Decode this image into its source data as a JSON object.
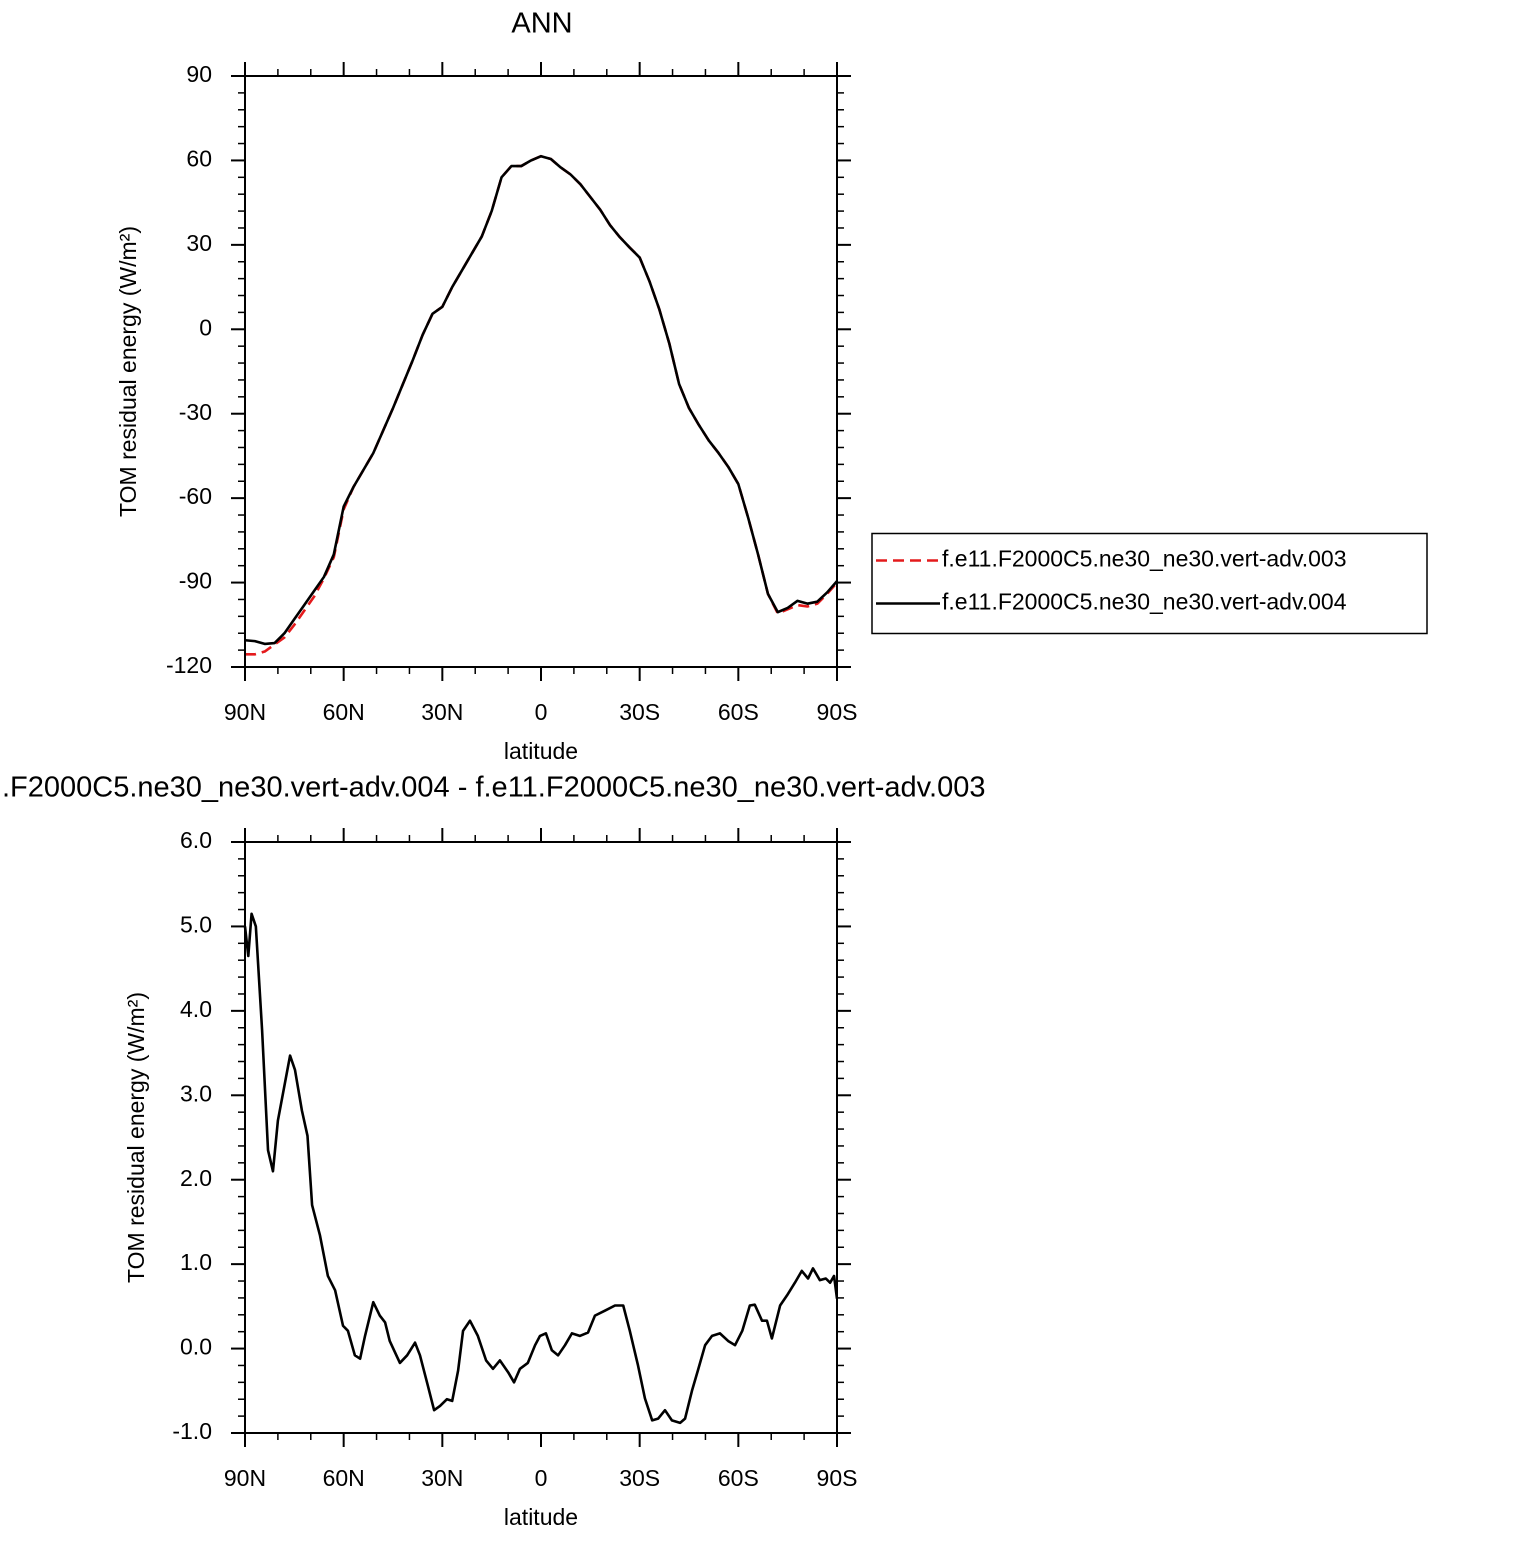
{
  "chart_data": [
    {
      "type": "line",
      "title": "ANN",
      "ylabel": "TOM residual energy (W/m²)",
      "xlabel": "latitude",
      "xlim": [
        90,
        -90
      ],
      "xticks": [
        {
          "value": 90,
          "label": "90N"
        },
        {
          "value": 60,
          "label": "60N"
        },
        {
          "value": 30,
          "label": "30N"
        },
        0,
        {
          "value": -30,
          "label": "30S"
        },
        {
          "value": -60,
          "label": "60S"
        },
        {
          "value": -90,
          "label": "90S"
        }
      ],
      "xminorticks": [
        80,
        70,
        50,
        40,
        20,
        10,
        -10,
        -20,
        -40,
        -50,
        -70,
        -80
      ],
      "ylim": [
        -120,
        90
      ],
      "yticks": [
        -120,
        -90,
        -60,
        -30,
        0,
        30,
        60,
        90
      ],
      "yminorticks": [
        -114,
        -108,
        -102,
        -96,
        -84,
        -78,
        -72,
        -66,
        -54,
        -48,
        -42,
        -36,
        -24,
        -18,
        -12,
        -6,
        6,
        12,
        18,
        24,
        36,
        42,
        48,
        54,
        66,
        72,
        78,
        84
      ],
      "legend": "right",
      "x": [
        90,
        87,
        84,
        81,
        78,
        75,
        72,
        69,
        66,
        63,
        60,
        57,
        54,
        51,
        48,
        45,
        42,
        39,
        36,
        33,
        30,
        27,
        24,
        21,
        18,
        15,
        12,
        9,
        6,
        3,
        0,
        -3,
        -6,
        -9,
        -12,
        -15,
        -18,
        -21,
        -24,
        -27,
        -30,
        -33,
        -36,
        -39,
        -42,
        -45,
        -48,
        -51,
        -54,
        -57,
        -60,
        -63,
        -66,
        -69,
        -72,
        -75,
        -78,
        -81,
        -84,
        -87,
        -90
      ],
      "series": [
        {
          "name": "f.e11.F2000C5.ne30_ne30.vert-adv.003",
          "color": "#e41a1c",
          "linestyle": "dashed",
          "values": [
            -115.5,
            -115.5,
            -114.5,
            -112,
            -109.5,
            -105,
            -100,
            -95,
            -88.5,
            -81,
            -64,
            -56,
            -50,
            -44,
            -36,
            -28,
            -19.5,
            -11,
            -2,
            5.5,
            8,
            15,
            21,
            27,
            33,
            42,
            54,
            58,
            58,
            60,
            61.5,
            60.5,
            57.5,
            55,
            51.5,
            47,
            42.5,
            37,
            32.7,
            29,
            25.5,
            17,
            7,
            -5,
            -19.5,
            -28,
            -34,
            -39.5,
            -44,
            -49,
            -55,
            -67,
            -80,
            -94,
            -101,
            -99.5,
            -98,
            -98.5,
            -97.5,
            -94,
            -90
          ]
        },
        {
          "name": "f.e11.F2000C5.ne30_ne30.vert-adv.004",
          "color": "#000000",
          "linestyle": "solid",
          "values": [
            -110.5,
            -110.8,
            -111.8,
            -111.5,
            -108,
            -103,
            -98,
            -93,
            -88,
            -80,
            -63,
            -56,
            -50,
            -44,
            -36,
            -28,
            -19.5,
            -11,
            -2,
            5.5,
            8,
            15,
            21,
            27,
            33,
            42,
            54,
            58,
            58,
            60,
            61.5,
            60.5,
            57.5,
            55,
            51.5,
            47,
            42.5,
            37,
            32.7,
            29,
            25.5,
            17,
            7,
            -5,
            -19.5,
            -28,
            -34,
            -39.5,
            -44,
            -49,
            -55,
            -67,
            -80,
            -94,
            -100.5,
            -99,
            -96.5,
            -97.5,
            -96.8,
            -93.5,
            -89.5
          ]
        }
      ]
    },
    {
      "type": "line",
      "title": ".F2000C5.ne30_ne30.vert-adv.004 - f.e11.F2000C5.ne30_ne30.vert-adv.003",
      "ylabel": "TOM residual energy (W/m²)",
      "xlabel": "latitude",
      "xlim": [
        90,
        -90
      ],
      "xticks": [
        {
          "value": 90,
          "label": "90N"
        },
        {
          "value": 60,
          "label": "60N"
        },
        {
          "value": 30,
          "label": "30N"
        },
        0,
        {
          "value": -30,
          "label": "30S"
        },
        {
          "value": -60,
          "label": "60S"
        },
        {
          "value": -90,
          "label": "90S"
        }
      ],
      "xminorticks": [
        80,
        70,
        50,
        40,
        20,
        10,
        -10,
        -20,
        -40,
        -50,
        -70,
        -80
      ],
      "ylim": [
        -1,
        6
      ],
      "yticks": [
        {
          "value": -1,
          "label": "-1.0"
        },
        {
          "value": 0,
          "label": "0.0"
        },
        {
          "value": 1,
          "label": "1.0"
        },
        {
          "value": 2,
          "label": "2.0"
        },
        {
          "value": 3,
          "label": "3.0"
        },
        {
          "value": 4,
          "label": "4.0"
        },
        {
          "value": 5,
          "label": "5.0"
        },
        {
          "value": 6,
          "label": "6.0"
        }
      ],
      "yminorticks": [
        -0.8,
        -0.6,
        -0.4,
        -0.2,
        0.2,
        0.4,
        0.6,
        0.8,
        1.2,
        1.4,
        1.6,
        1.8,
        2.2,
        2.4,
        2.6,
        2.8,
        3.2,
        3.4,
        3.6,
        3.8,
        4.2,
        4.4,
        4.6,
        4.8,
        5.2,
        5.4,
        5.6,
        5.8
      ],
      "x": [
        90,
        89,
        88,
        86.7,
        84.8,
        83,
        81.5,
        80,
        76.3,
        74.8,
        72.7,
        71,
        69.6,
        67.2,
        64.8,
        62.6,
        60.2,
        58.7,
        56.6,
        55,
        53.5,
        51,
        49,
        47.4,
        46,
        42.9,
        40.7,
        38.3,
        36.8,
        34.4,
        32.5,
        30.7,
        28.6,
        27,
        25.2,
        23.7,
        21.6,
        19.2,
        16.7,
        14.6,
        12.5,
        10,
        8.2,
        6.4,
        4,
        1.8,
        0.3,
        -1.5,
        -3.3,
        -5.2,
        -7.3,
        -9.4,
        -11.8,
        -14.3,
        -16.4,
        -19.5,
        -22.5,
        -25,
        -27,
        -29.5,
        -31.6,
        -33.8,
        -35.6,
        -37.7,
        -39.8,
        -42.3,
        -43.8,
        -45.9,
        -47.7,
        -49.9,
        -52,
        -54.4,
        -56.9,
        -59,
        -61.2,
        -63.5,
        -65,
        -67.2,
        -68.7,
        -70.2,
        -72.7,
        -74.8,
        -77.2,
        -79.3,
        -81.2,
        -82.7,
        -84.8,
        -86.6,
        -87.9,
        -89.1,
        -90
      ],
      "series": [
        {
          "color": "#000000",
          "linestyle": "solid",
          "values": [
            5.0,
            4.65,
            5.15,
            5.0,
            3.77,
            2.35,
            2.1,
            2.7,
            3.47,
            3.3,
            2.82,
            2.52,
            1.7,
            1.34,
            0.86,
            0.69,
            0.27,
            0.21,
            -0.08,
            -0.12,
            0.15,
            0.55,
            0.39,
            0.31,
            0.09,
            -0.17,
            -0.08,
            0.07,
            -0.08,
            -0.44,
            -0.73,
            -0.68,
            -0.6,
            -0.62,
            -0.26,
            0.21,
            0.33,
            0.15,
            -0.14,
            -0.24,
            -0.14,
            -0.28,
            -0.4,
            -0.24,
            -0.17,
            0.04,
            0.15,
            0.18,
            -0.02,
            -0.08,
            0.04,
            0.18,
            0.15,
            0.19,
            0.39,
            0.45,
            0.51,
            0.51,
            0.21,
            -0.2,
            -0.59,
            -0.85,
            -0.83,
            -0.73,
            -0.85,
            -0.88,
            -0.83,
            -0.5,
            -0.26,
            0.04,
            0.15,
            0.18,
            0.09,
            0.04,
            0.21,
            0.51,
            0.52,
            0.33,
            0.33,
            0.12,
            0.51,
            0.63,
            0.78,
            0.92,
            0.83,
            0.95,
            0.81,
            0.83,
            0.78,
            0.86,
            0.59
          ]
        }
      ]
    }
  ]
}
